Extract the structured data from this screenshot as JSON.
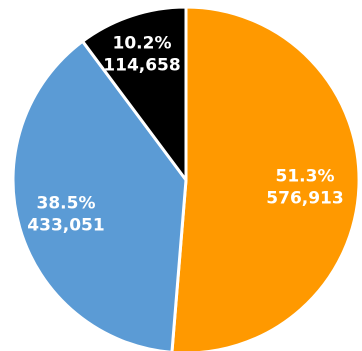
{
  "chart_data": {
    "type": "pie",
    "slices": [
      {
        "percent_label": "51.3%",
        "value_label": "576,913",
        "value": 576913,
        "percent": 51.3,
        "color": "#FF9900"
      },
      {
        "percent_label": "38.5%",
        "value_label": "433,051",
        "value": 433051,
        "percent": 38.5,
        "color": "#5B9BD5"
      },
      {
        "percent_label": "10.2%",
        "value_label": "114,658",
        "value": 114658,
        "percent": 10.2,
        "color": "#000000"
      }
    ],
    "start_angle": "12 o'clock",
    "direction": "clockwise",
    "slice_border_color": "#ffffff",
    "legend": "none"
  }
}
